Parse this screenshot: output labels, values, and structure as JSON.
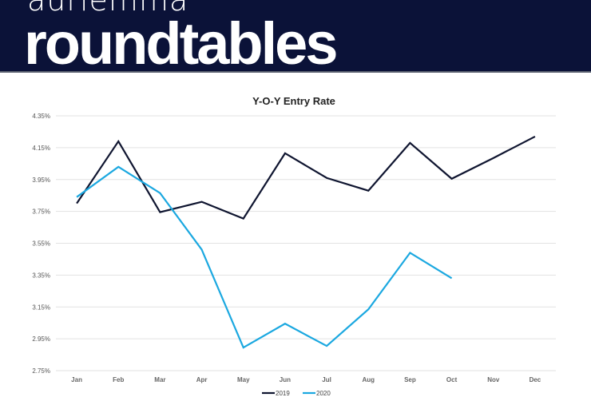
{
  "header": {
    "brand_top": "aurlemma",
    "brand_main": "roundtables",
    "background": "#0b1238"
  },
  "chart_data": {
    "type": "line",
    "title": "Y-O-Y Entry Rate",
    "categories": [
      "Jan",
      "Feb",
      "Mar",
      "Apr",
      "May",
      "Jun",
      "Jul",
      "Aug",
      "Sep",
      "Oct",
      "Nov",
      "Dec"
    ],
    "yticks": [
      "4.35%",
      "4.15%",
      "3.95%",
      "3.75%",
      "3.55%",
      "3.35%",
      "3.15%",
      "2.95%",
      "2.75%"
    ],
    "ylim": [
      2.75,
      4.35
    ],
    "grid": true,
    "legend_position": "bottom",
    "series": [
      {
        "name": "2019",
        "color": "#0f1530",
        "values": [
          3.8,
          4.19,
          3.745,
          3.81,
          3.705,
          4.115,
          3.96,
          3.88,
          4.18,
          3.955,
          4.085,
          4.22
        ]
      },
      {
        "name": "2020",
        "color": "#1ba8e0",
        "values": [
          3.84,
          4.03,
          3.865,
          3.51,
          2.895,
          3.045,
          2.905,
          3.135,
          3.49,
          3.33,
          null,
          null
        ]
      }
    ]
  }
}
